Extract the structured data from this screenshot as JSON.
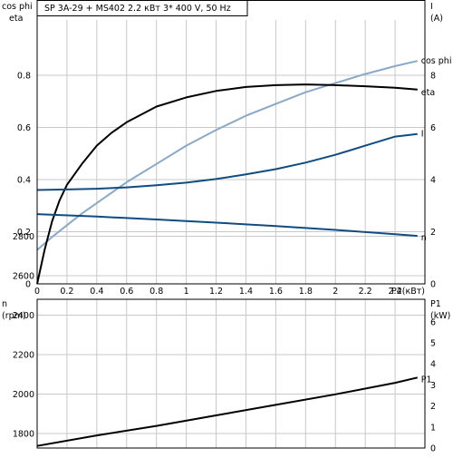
{
  "chart_data": [
    {
      "type": "line",
      "title": "SP 3A-29 + MS402    2.2 кВт   3* 400 V, 50 Hz",
      "left_axis_label": [
        "cos phi",
        "eta"
      ],
      "right_axis_label": [
        "I",
        "(A)"
      ],
      "xlabel": "P2(кВт)",
      "xlim": [
        0,
        2.6
      ],
      "ylim_left": [
        0,
        1.0
      ],
      "ylim_right": [
        0,
        10
      ],
      "x_ticks": [
        "0",
        "0.2",
        "0.4",
        "0.6",
        "0.8",
        "1",
        "1.2",
        "1.4",
        "1.6",
        "1.8",
        "2",
        "2.2",
        "2.4"
      ],
      "y_ticks_left": [
        "0",
        "0.2",
        "0.4",
        "0.6",
        "0.8"
      ],
      "y_ticks_right": [
        "0",
        "2",
        "4",
        "6",
        "8"
      ],
      "grid": true,
      "series": [
        {
          "name": "cos phi",
          "axis": "left",
          "color": "#8AA8C8",
          "x": [
            0,
            0.1,
            0.2,
            0.3,
            0.4,
            0.5,
            0.6,
            0.8,
            1.0,
            1.2,
            1.4,
            1.6,
            1.8,
            2.0,
            2.2,
            2.4,
            2.55
          ],
          "y": [
            0.13,
            0.18,
            0.225,
            0.27,
            0.31,
            0.35,
            0.39,
            0.46,
            0.53,
            0.59,
            0.645,
            0.69,
            0.735,
            0.77,
            0.805,
            0.835,
            0.855
          ]
        },
        {
          "name": "eta",
          "axis": "left",
          "color": "#000000",
          "x": [
            0,
            0.05,
            0.1,
            0.15,
            0.2,
            0.3,
            0.4,
            0.5,
            0.6,
            0.8,
            1.0,
            1.2,
            1.4,
            1.6,
            1.8,
            2.0,
            2.2,
            2.4,
            2.55
          ],
          "y": [
            0,
            0.13,
            0.24,
            0.32,
            0.38,
            0.46,
            0.53,
            0.58,
            0.62,
            0.68,
            0.715,
            0.74,
            0.755,
            0.762,
            0.765,
            0.762,
            0.758,
            0.752,
            0.745
          ]
        },
        {
          "name": "I",
          "axis": "right",
          "color": "#0F4C81",
          "x": [
            0,
            0.2,
            0.4,
            0.6,
            0.8,
            1.0,
            1.2,
            1.4,
            1.6,
            1.8,
            2.0,
            2.2,
            2.4,
            2.55
          ],
          "y": [
            3.6,
            3.62,
            3.65,
            3.7,
            3.78,
            3.88,
            4.02,
            4.2,
            4.4,
            4.65,
            4.95,
            5.3,
            5.65,
            5.75
          ]
        }
      ]
    },
    {
      "type": "line",
      "left_axis_label": [
        "n",
        "(rpm)"
      ],
      "right_axis_label": [
        "P1",
        "(kW)"
      ],
      "xlim": [
        0,
        2.6
      ],
      "ylim_left": [
        1650,
        2950
      ],
      "ylim_right": [
        0,
        7
      ],
      "y_ticks_left": [
        "1800",
        "2000",
        "2200",
        "2400",
        "2600",
        "2800"
      ],
      "y_ticks_right": [
        "0",
        "1",
        "2",
        "3",
        "4",
        "5",
        "6"
      ],
      "grid": true,
      "series": [
        {
          "name": "n",
          "axis": "left",
          "color": "#0F4C81",
          "x": [
            0,
            0.4,
            0.8,
            1.2,
            1.6,
            2.0,
            2.4,
            2.55
          ],
          "y": [
            2912,
            2900,
            2885,
            2869,
            2852,
            2832,
            2810,
            2802
          ]
        },
        {
          "name": "P1",
          "axis": "right",
          "color": "#000000",
          "x": [
            0,
            0.4,
            0.8,
            1.2,
            1.6,
            2.0,
            2.4,
            2.55
          ],
          "y": [
            0.1,
            0.6,
            1.05,
            1.55,
            2.05,
            2.55,
            3.1,
            3.35
          ]
        }
      ]
    }
  ]
}
